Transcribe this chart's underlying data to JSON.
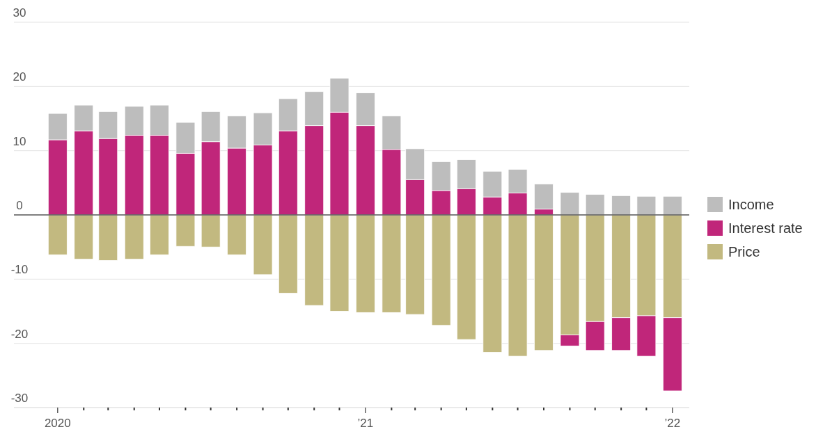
{
  "chart_data": {
    "type": "bar",
    "stacked": true,
    "x": [
      "2020-01",
      "2020-02",
      "2020-03",
      "2020-04",
      "2020-05",
      "2020-06",
      "2020-07",
      "2020-08",
      "2020-09",
      "2020-10",
      "2020-11",
      "2020-12",
      "2021-01",
      "2021-02",
      "2021-03",
      "2021-04",
      "2021-05",
      "2021-06",
      "2021-07",
      "2021-08",
      "2021-09",
      "2021-10",
      "2021-11",
      "2021-12",
      "2022-01"
    ],
    "series": [
      {
        "name": "Price",
        "color": "#c2b980",
        "values": [
          -6.2,
          -6.9,
          -7.1,
          -6.9,
          -6.2,
          -4.9,
          -5.0,
          -6.2,
          -9.3,
          -12.2,
          -14.1,
          -15.0,
          -15.2,
          -15.2,
          -15.5,
          -17.2,
          -19.4,
          -21.4,
          -22.0,
          -21.1,
          -18.7,
          -16.6,
          -16.0,
          -15.7,
          -16.0
        ]
      },
      {
        "name": "Interest rate",
        "color": "#c0267a",
        "values": [
          11.7,
          13.1,
          11.9,
          12.4,
          12.4,
          9.6,
          11.4,
          10.4,
          10.9,
          13.1,
          13.9,
          16.0,
          13.9,
          10.2,
          5.5,
          3.8,
          4.1,
          2.8,
          3.4,
          0.9,
          -1.7,
          -4.5,
          -5.1,
          -6.3,
          -11.4
        ]
      },
      {
        "name": "Income",
        "color": "#bdbdbd",
        "values": [
          4.1,
          4.0,
          4.2,
          4.5,
          4.7,
          4.8,
          4.7,
          5.0,
          5.0,
          5.0,
          5.3,
          5.3,
          5.1,
          5.2,
          4.8,
          4.5,
          4.5,
          4.0,
          3.7,
          3.9,
          3.5,
          3.2,
          3.0,
          2.9,
          2.9
        ]
      }
    ],
    "xlim": [
      "2019-11-10",
      "2022-01-21"
    ],
    "xticks": [
      {
        "value": "2020-01",
        "label": "2020"
      },
      {
        "value": "2020-02",
        "label": null
      },
      {
        "value": "2020-03",
        "label": null
      },
      {
        "value": "2020-04",
        "label": null
      },
      {
        "value": "2020-05",
        "label": null
      },
      {
        "value": "2020-06",
        "label": null
      },
      {
        "value": "2020-07",
        "label": null
      },
      {
        "value": "2020-08",
        "label": null
      },
      {
        "value": "2020-09",
        "label": null
      },
      {
        "value": "2020-10",
        "label": null
      },
      {
        "value": "2020-11",
        "label": null
      },
      {
        "value": "2020-12",
        "label": null
      },
      {
        "value": "2021-01",
        "label": "’21"
      },
      {
        "value": "2021-02",
        "label": null
      },
      {
        "value": "2021-03",
        "label": null
      },
      {
        "value": "2021-04",
        "label": null
      },
      {
        "value": "2021-05",
        "label": null
      },
      {
        "value": "2021-06",
        "label": null
      },
      {
        "value": "2021-07",
        "label": null
      },
      {
        "value": "2021-08",
        "label": null
      },
      {
        "value": "2021-09",
        "label": null
      },
      {
        "value": "2021-10",
        "label": null
      },
      {
        "value": "2021-11",
        "label": null
      },
      {
        "value": "2021-12",
        "label": null
      },
      {
        "value": "2022-01",
        "label": "’22"
      }
    ],
    "ylim": [
      -30,
      30
    ],
    "yticks": [
      -30,
      -20,
      -10,
      0,
      10,
      20,
      30
    ],
    "grid": "y",
    "legend": "right"
  }
}
